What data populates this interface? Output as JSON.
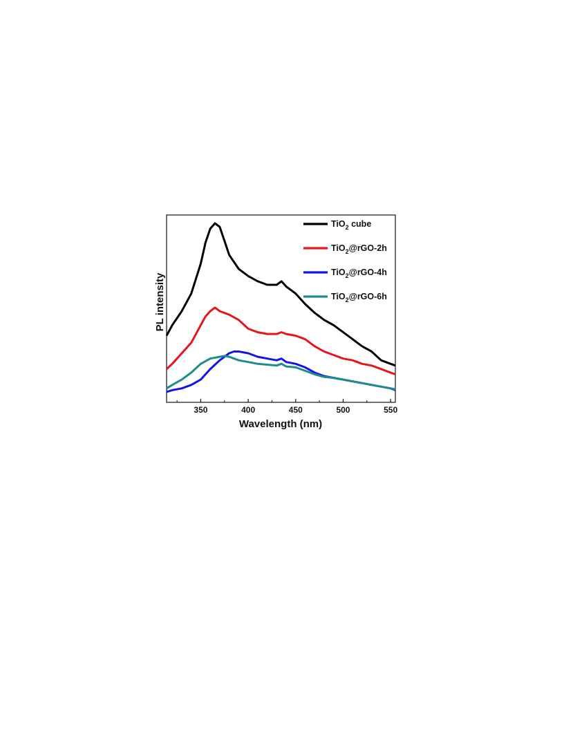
{
  "chart_data": {
    "type": "line",
    "xlabel": "Wavelength (nm)",
    "ylabel": "PL intensity",
    "xlim": [
      314,
      555
    ],
    "ylim": [
      0,
      100
    ],
    "xticks": [
      350,
      400,
      450,
      500,
      550
    ],
    "y_tick_labels": false,
    "grid": false,
    "legend_position": "top-right",
    "series": [
      {
        "name": "TiO2 cube",
        "legend_main": "TiO",
        "legend_sub": "2",
        "legend_rest": " cube",
        "color": "#000000",
        "x": [
          314,
          320,
          330,
          340,
          350,
          355,
          360,
          365,
          370,
          375,
          380,
          390,
          400,
          410,
          420,
          430,
          435,
          440,
          450,
          460,
          470,
          480,
          490,
          500,
          510,
          520,
          530,
          540,
          550,
          555
        ],
        "y": [
          34,
          40,
          48,
          58,
          75,
          87,
          95,
          98,
          96,
          88,
          80,
          72,
          68,
          65,
          63,
          63,
          65,
          62,
          58,
          52,
          47,
          43,
          40,
          36,
          32,
          28,
          25,
          20,
          18,
          17
        ]
      },
      {
        "name": "TiO2@rGO-2h",
        "legend_main": "TiO",
        "legend_sub": "2",
        "legend_rest": "@rGO-2h",
        "color": "#e8141b",
        "x": [
          314,
          320,
          330,
          340,
          350,
          355,
          360,
          365,
          370,
          380,
          390,
          400,
          410,
          420,
          430,
          435,
          440,
          450,
          460,
          470,
          480,
          490,
          500,
          510,
          520,
          530,
          540,
          550,
          555
        ],
        "y": [
          15,
          18,
          24,
          30,
          40,
          45,
          48,
          50,
          48,
          46,
          43,
          38,
          36,
          35,
          35,
          36,
          35,
          34,
          32,
          28,
          25,
          23,
          21,
          20,
          18,
          17,
          15,
          13,
          12
        ]
      },
      {
        "name": "TiO2@rGO-4h",
        "legend_main": "TiO",
        "legend_sub": "2",
        "legend_rest": "@rGO-4h",
        "color": "#1414e6",
        "x": [
          314,
          320,
          330,
          340,
          350,
          360,
          370,
          380,
          385,
          390,
          400,
          410,
          420,
          430,
          435,
          440,
          450,
          460,
          470,
          480,
          490,
          500,
          510,
          520,
          530,
          540,
          550,
          555
        ],
        "y": [
          2,
          3,
          4,
          6,
          9,
          15,
          20,
          24,
          25,
          25,
          24,
          22,
          21,
          20,
          21,
          19,
          18,
          16,
          13,
          11,
          10,
          9,
          8,
          7,
          6,
          5,
          4,
          3
        ]
      },
      {
        "name": "TiO2@rGO-6h",
        "legend_main": "TiO",
        "legend_sub": "2",
        "legend_rest": "@rGO-6h",
        "color": "#1e8c8c",
        "x": [
          314,
          320,
          330,
          340,
          350,
          360,
          370,
          375,
          380,
          390,
          400,
          410,
          420,
          430,
          435,
          440,
          450,
          460,
          470,
          480,
          490,
          500,
          510,
          520,
          530,
          540,
          550,
          555
        ],
        "y": [
          4,
          6,
          9,
          13,
          18,
          21,
          22,
          22.5,
          22,
          20,
          19,
          18,
          17.5,
          17,
          18,
          16.5,
          16,
          14,
          12,
          10.5,
          10,
          9,
          8,
          7,
          6,
          5,
          4,
          3.5
        ]
      }
    ]
  }
}
